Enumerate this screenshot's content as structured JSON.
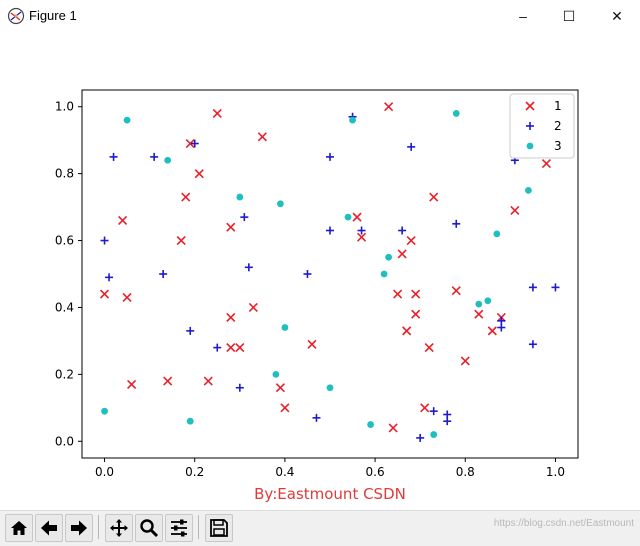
{
  "window": {
    "title": "Figure 1",
    "controls": {
      "minimize": "–",
      "maximize": "☐",
      "close": "✕"
    }
  },
  "toolbar": {
    "buttons": [
      "home-icon",
      "back-icon",
      "forward-icon",
      "pan-icon",
      "zoom-icon",
      "configure-subplots-icon",
      "save-icon"
    ]
  },
  "watermark": "https://blog.csdn.net/Eastmount",
  "colors": {
    "series1": "#e8202a",
    "series2": "#1c1ccc",
    "series3": "#1fbfbf",
    "author": "#e03a3a"
  },
  "chart_data": {
    "type": "scatter",
    "xlim": [
      -0.05,
      1.05
    ],
    "ylim": [
      -0.05,
      1.05
    ],
    "xticks": [
      0.0,
      0.2,
      0.4,
      0.6,
      0.8,
      1.0
    ],
    "yticks": [
      0.0,
      0.2,
      0.4,
      0.6,
      0.8,
      1.0
    ],
    "xtick_labels": [
      "0.0",
      "0.2",
      "0.4",
      "0.6",
      "0.8",
      "1.0"
    ],
    "ytick_labels": [
      "0.0",
      "0.2",
      "0.4",
      "0.6",
      "0.8",
      "1.0"
    ],
    "xlabel": "By:Eastmount CSDN",
    "legend_position": "top-right",
    "grid": false,
    "series": [
      {
        "name": "1",
        "marker": "x",
        "color": "#e8202a",
        "points": [
          [
            0.0,
            0.44
          ],
          [
            0.04,
            0.66
          ],
          [
            0.05,
            0.43
          ],
          [
            0.06,
            0.17
          ],
          [
            0.14,
            0.18
          ],
          [
            0.17,
            0.6
          ],
          [
            0.18,
            0.73
          ],
          [
            0.19,
            0.89
          ],
          [
            0.21,
            0.8
          ],
          [
            0.23,
            0.18
          ],
          [
            0.25,
            0.98
          ],
          [
            0.28,
            0.64
          ],
          [
            0.28,
            0.37
          ],
          [
            0.28,
            0.28
          ],
          [
            0.3,
            0.28
          ],
          [
            0.33,
            0.4
          ],
          [
            0.35,
            0.91
          ],
          [
            0.39,
            0.16
          ],
          [
            0.4,
            0.1
          ],
          [
            0.46,
            0.29
          ],
          [
            0.56,
            0.67
          ],
          [
            0.57,
            0.61
          ],
          [
            0.63,
            1.0
          ],
          [
            0.64,
            0.04
          ],
          [
            0.65,
            0.44
          ],
          [
            0.66,
            0.56
          ],
          [
            0.67,
            0.33
          ],
          [
            0.68,
            0.6
          ],
          [
            0.69,
            0.44
          ],
          [
            0.69,
            0.38
          ],
          [
            0.71,
            0.1
          ],
          [
            0.72,
            0.28
          ],
          [
            0.73,
            0.73
          ],
          [
            0.78,
            0.45
          ],
          [
            0.8,
            0.24
          ],
          [
            0.83,
            0.38
          ],
          [
            0.86,
            0.33
          ],
          [
            0.88,
            0.37
          ],
          [
            0.91,
            0.69
          ],
          [
            0.98,
            0.83
          ]
        ]
      },
      {
        "name": "2",
        "marker": "+",
        "color": "#1c1ccc",
        "points": [
          [
            0.0,
            0.6
          ],
          [
            0.01,
            0.49
          ],
          [
            0.02,
            0.85
          ],
          [
            0.11,
            0.85
          ],
          [
            0.13,
            0.5
          ],
          [
            0.19,
            0.33
          ],
          [
            0.2,
            0.89
          ],
          [
            0.25,
            0.28
          ],
          [
            0.3,
            0.16
          ],
          [
            0.31,
            0.67
          ],
          [
            0.32,
            0.52
          ],
          [
            0.45,
            0.5
          ],
          [
            0.47,
            0.07
          ],
          [
            0.5,
            0.63
          ],
          [
            0.5,
            0.85
          ],
          [
            0.55,
            0.97
          ],
          [
            0.57,
            0.63
          ],
          [
            0.66,
            0.63
          ],
          [
            0.68,
            0.88
          ],
          [
            0.7,
            0.01
          ],
          [
            0.73,
            0.09
          ],
          [
            0.76,
            0.06
          ],
          [
            0.76,
            0.08
          ],
          [
            0.78,
            0.65
          ],
          [
            0.88,
            0.34
          ],
          [
            0.88,
            0.36
          ],
          [
            0.91,
            0.84
          ],
          [
            0.95,
            0.46
          ],
          [
            0.95,
            0.29
          ],
          [
            1.0,
            0.46
          ]
        ]
      },
      {
        "name": "3",
        "marker": "o",
        "color": "#1fbfbf",
        "points": [
          [
            0.0,
            0.09
          ],
          [
            0.05,
            0.96
          ],
          [
            0.14,
            0.84
          ],
          [
            0.19,
            0.06
          ],
          [
            0.3,
            0.73
          ],
          [
            0.38,
            0.2
          ],
          [
            0.39,
            0.71
          ],
          [
            0.4,
            0.34
          ],
          [
            0.5,
            0.16
          ],
          [
            0.54,
            0.67
          ],
          [
            0.55,
            0.96
          ],
          [
            0.59,
            0.05
          ],
          [
            0.62,
            0.5
          ],
          [
            0.63,
            0.55
          ],
          [
            0.73,
            0.02
          ],
          [
            0.78,
            0.98
          ],
          [
            0.83,
            0.41
          ],
          [
            0.85,
            0.42
          ],
          [
            0.87,
            0.62
          ],
          [
            0.94,
            0.75
          ]
        ]
      }
    ]
  }
}
